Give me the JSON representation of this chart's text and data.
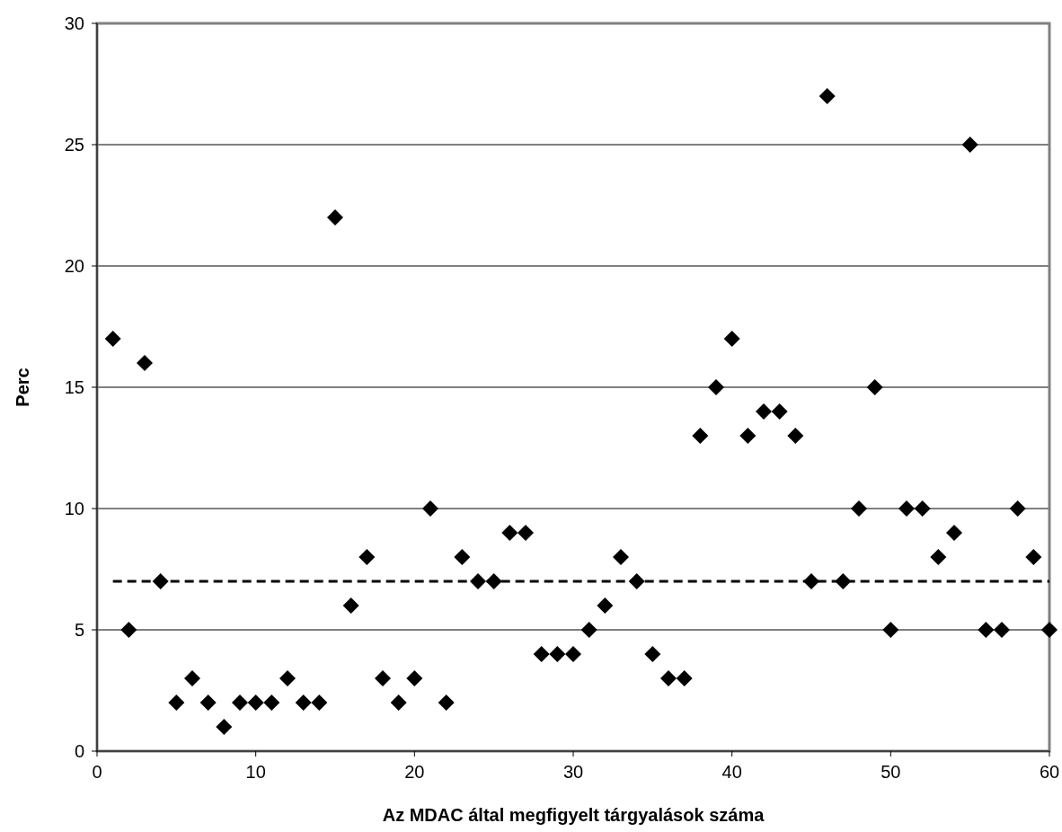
{
  "chart_data": {
    "type": "scatter",
    "xlabel": "Az MDAC által megfigyelt tárgyalások száma",
    "ylabel": "Perc",
    "x": [
      1,
      2,
      3,
      4,
      5,
      6,
      7,
      8,
      9,
      10,
      11,
      12,
      13,
      14,
      15,
      16,
      17,
      18,
      19,
      20,
      21,
      22,
      23,
      24,
      25,
      26,
      27,
      28,
      29,
      30,
      31,
      32,
      33,
      34,
      35,
      36,
      37,
      38,
      39,
      40,
      41,
      42,
      43,
      44,
      45,
      46,
      47,
      48,
      49,
      50,
      51,
      52,
      53,
      54,
      55,
      56,
      57,
      58,
      59,
      60
    ],
    "series": [
      {
        "color": "#000000",
        "values": [
          17,
          5,
          16,
          7,
          2,
          3,
          2,
          1,
          2,
          2,
          2,
          3,
          2,
          2,
          22,
          6,
          8,
          3,
          2,
          3,
          10,
          2,
          8,
          7,
          7,
          9,
          9,
          4,
          4,
          4,
          5,
          6,
          8,
          7,
          4,
          3,
          3,
          13,
          15,
          17,
          13,
          14,
          14,
          13,
          7,
          27,
          7,
          10,
          15,
          5,
          10,
          10,
          8,
          9,
          25,
          5,
          5,
          10,
          8,
          5
        ]
      }
    ],
    "xlim": [
      0,
      60
    ],
    "xticks": [
      0,
      10,
      20,
      30,
      40,
      50,
      60
    ],
    "ylim": [
      0,
      30
    ],
    "yticks": [
      0,
      5,
      10,
      15,
      20,
      25,
      30
    ],
    "grid": "y",
    "marker": "diamond",
    "ref_lines": [
      {
        "axis": "y",
        "value": 7,
        "color": "#000000",
        "line_style": "dashed"
      }
    ]
  }
}
